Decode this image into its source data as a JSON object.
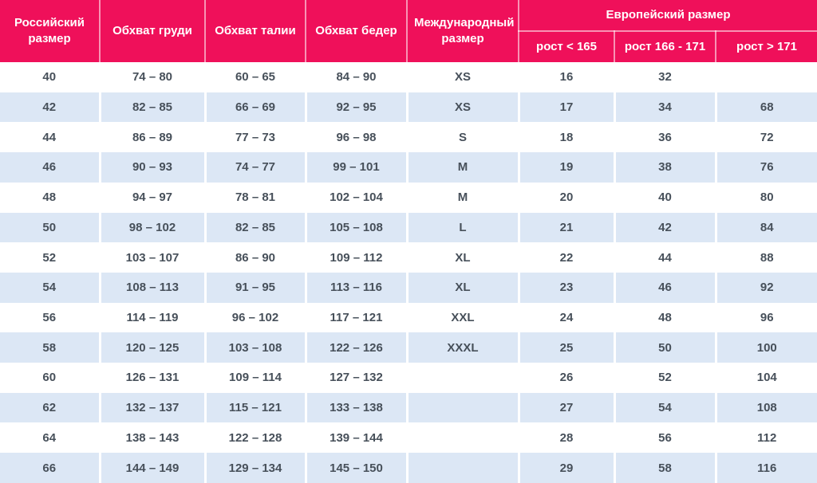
{
  "colors": {
    "header_bg": "#EF105A",
    "header_text": "#FFFFFF",
    "stripe_bg": "#DCE7F5",
    "row_bg": "#FFFFFF",
    "cell_text": "#47505A"
  },
  "chart_data": {
    "type": "table",
    "header": {
      "russian_size": "Российский размер",
      "chest": "Обхват груди",
      "waist": "Обхват талии",
      "hips": "Обхват бедер",
      "international_size": "Международный размер",
      "european_size": "Европейский размер",
      "height_lt_165": "рост < 165",
      "height_166_171": "рост 166 - 171",
      "height_gt_171": "рост > 171"
    },
    "rows": [
      [
        "40",
        "74 – 80",
        "60 – 65",
        "84 – 90",
        "XS",
        "16",
        "32",
        ""
      ],
      [
        "42",
        "82 – 85",
        "66 – 69",
        "92 – 95",
        "XS",
        "17",
        "34",
        "68"
      ],
      [
        "44",
        "86 – 89",
        "77 – 73",
        "96 – 98",
        "S",
        "18",
        "36",
        "72"
      ],
      [
        "46",
        "90 – 93",
        "74 – 77",
        "99 – 101",
        "M",
        "19",
        "38",
        "76"
      ],
      [
        "48",
        "94 – 97",
        "78 – 81",
        "102 – 104",
        "M",
        "20",
        "40",
        "80"
      ],
      [
        "50",
        "98 – 102",
        "82 – 85",
        "105 – 108",
        "L",
        "21",
        "42",
        "84"
      ],
      [
        "52",
        "103 – 107",
        "86 – 90",
        "109 – 112",
        "XL",
        "22",
        "44",
        "88"
      ],
      [
        "54",
        "108 – 113",
        "91 – 95",
        "113 – 116",
        "XL",
        "23",
        "46",
        "92"
      ],
      [
        "56",
        "114 – 119",
        "96 – 102",
        "117 – 121",
        "XXL",
        "24",
        "48",
        "96"
      ],
      [
        "58",
        "120 – 125",
        "103 – 108",
        "122 – 126",
        "XXXL",
        "25",
        "50",
        "100"
      ],
      [
        "60",
        "126 – 131",
        "109 – 114",
        "127 – 132",
        "",
        "26",
        "52",
        "104"
      ],
      [
        "62",
        "132 – 137",
        "115 – 121",
        "133 – 138",
        "",
        "27",
        "54",
        "108"
      ],
      [
        "64",
        "138 – 143",
        "122 – 128",
        "139 – 144",
        "",
        "28",
        "56",
        "112"
      ],
      [
        "66",
        "144 – 149",
        "129 – 134",
        "145 – 150",
        "",
        "29",
        "58",
        "116"
      ]
    ]
  }
}
